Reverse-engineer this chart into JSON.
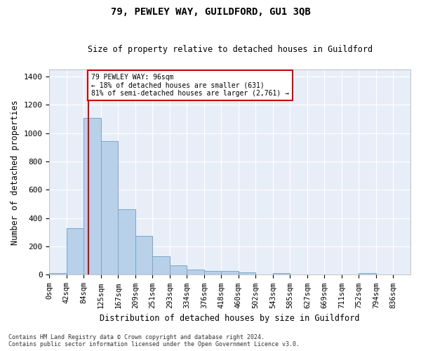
{
  "title": "79, PEWLEY WAY, GUILDFORD, GU1 3QB",
  "subtitle": "Size of property relative to detached houses in Guildford",
  "xlabel": "Distribution of detached houses by size in Guildford",
  "ylabel": "Number of detached properties",
  "bar_color": "#b8d0e8",
  "bar_edge_color": "#7aa8cc",
  "background_color": "#e8eef8",
  "grid_color": "#ffffff",
  "tick_labels": [
    "0sqm",
    "42sqm",
    "84sqm",
    "125sqm",
    "167sqm",
    "209sqm",
    "251sqm",
    "293sqm",
    "334sqm",
    "376sqm",
    "418sqm",
    "460sqm",
    "502sqm",
    "543sqm",
    "585sqm",
    "627sqm",
    "669sqm",
    "711sqm",
    "752sqm",
    "794sqm",
    "836sqm"
  ],
  "bar_heights": [
    10,
    330,
    1110,
    945,
    465,
    275,
    130,
    65,
    38,
    25,
    25,
    18,
    0,
    12,
    0,
    0,
    0,
    0,
    12,
    0,
    0
  ],
  "vline_x_index": 2,
  "annotation_line1": "79 PEWLEY WAY: 96sqm",
  "annotation_line2": "← 18% of detached houses are smaller (631)",
  "annotation_line3": "81% of semi-detached houses are larger (2,761) →",
  "ylim": [
    0,
    1450
  ],
  "yticks": [
    0,
    200,
    400,
    600,
    800,
    1000,
    1200,
    1400
  ],
  "footer_line1": "Contains HM Land Registry data © Crown copyright and database right 2024.",
  "footer_line2": "Contains public sector information licensed under the Open Government Licence v3.0."
}
